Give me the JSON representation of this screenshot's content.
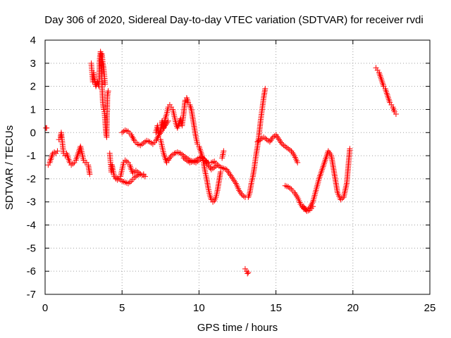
{
  "chart_data": {
    "type": "scatter",
    "title": "Day 306 of 2020, Sidereal Day-to-day VTEC variation (SDTVAR) for receiver rvdi",
    "xlabel": "GPS time / hours",
    "ylabel": "SDTVAR / TECUs",
    "xlim": [
      0,
      25
    ],
    "ylim": [
      -7,
      4
    ],
    "xticks": [
      0,
      5,
      10,
      15,
      20,
      25
    ],
    "yticks": [
      -7,
      -6,
      -5,
      -4,
      -3,
      -2,
      -1,
      0,
      1,
      2,
      3,
      4
    ],
    "grid": true,
    "marker_color": "#ff0000",
    "marker": "plus",
    "series": [
      {
        "name": "s1",
        "x": [
          0.05,
          0.1
        ],
        "y": [
          0.2,
          0.2
        ]
      },
      {
        "name": "s2",
        "x": [
          0.2,
          0.3,
          0.4,
          0.5,
          0.6,
          0.7,
          0.8
        ],
        "y": [
          -1.4,
          -1.3,
          -1.1,
          -0.9,
          -0.85,
          -0.9,
          -0.8
        ]
      },
      {
        "name": "s3",
        "x": [
          0.9,
          1.0,
          1.05,
          1.1,
          1.15,
          1.2,
          1.3,
          1.4,
          1.5,
          1.6,
          1.7,
          1.8,
          1.9,
          2.0,
          2.1,
          2.2,
          2.3,
          2.4,
          2.5,
          2.6,
          2.7,
          2.8,
          2.9
        ],
        "y": [
          -0.3,
          -0.2,
          0.0,
          -0.3,
          -0.6,
          -0.9,
          -1.0,
          -0.9,
          -1.1,
          -1.3,
          -1.4,
          -1.35,
          -1.3,
          -1.2,
          -1.0,
          -0.8,
          -0.6,
          -0.9,
          -1.2,
          -1.3,
          -1.3,
          -1.4,
          -1.8
        ]
      },
      {
        "name": "s4",
        "x": [
          3.0,
          3.05,
          3.1,
          3.15,
          3.2,
          3.3,
          3.4,
          3.5,
          3.55,
          3.6,
          3.65,
          3.7,
          3.75,
          3.8,
          3.85,
          3.9,
          3.95,
          4.0,
          4.05,
          4.1
        ],
        "y": [
          3.0,
          2.6,
          2.2,
          2.6,
          2.3,
          2.0,
          2.2,
          2.0,
          3.2,
          3.5,
          3.3,
          2.0,
          1.3,
          1.0,
          0.9,
          0.5,
          0.0,
          -0.2,
          1.6,
          1.8
        ]
      },
      {
        "name": "s5",
        "x": [
          3.7,
          3.75,
          3.8,
          3.85,
          3.9
        ],
        "y": [
          3.4,
          3.0,
          2.8,
          2.5,
          2.1
        ]
      },
      {
        "name": "s6",
        "x": [
          4.2,
          4.25,
          4.3,
          4.35,
          4.4,
          4.5,
          4.6,
          4.7,
          4.8,
          4.9,
          5.0,
          5.1,
          5.2,
          5.3,
          5.4,
          5.5,
          5.6,
          5.7,
          5.8,
          5.9,
          6.0,
          6.1,
          6.2,
          6.3,
          6.4,
          6.5
        ],
        "y": [
          -0.9,
          -1.3,
          -1.7,
          -1.4,
          -1.6,
          -1.9,
          -2.0,
          -2.05,
          -2.0,
          -1.9,
          -1.6,
          -1.3,
          -1.2,
          -1.25,
          -1.3,
          -1.4,
          -1.6,
          -1.75,
          -1.7,
          -1.65,
          -1.7,
          -1.75,
          -1.8,
          -1.85,
          -1.85,
          -1.9
        ]
      },
      {
        "name": "s7",
        "x": [
          4.6,
          4.8,
          5.0,
          5.2,
          5.4,
          5.6,
          5.8,
          6.0,
          6.2,
          6.4
        ],
        "y": [
          -1.95,
          -2.0,
          -2.1,
          -2.15,
          -2.2,
          -2.1,
          -1.95,
          -1.85,
          -1.8,
          -1.8
        ]
      },
      {
        "name": "s8",
        "x": [
          5.0,
          5.2,
          5.4,
          5.6,
          5.8,
          6.0,
          6.2,
          6.4,
          6.6,
          6.8,
          7.0,
          7.2,
          7.4,
          7.6,
          7.8,
          8.0
        ],
        "y": [
          0.0,
          0.1,
          0.05,
          -0.1,
          -0.35,
          -0.5,
          -0.55,
          -0.45,
          -0.35,
          -0.4,
          -0.5,
          -0.35,
          -0.1,
          0.1,
          0.3,
          0.5
        ]
      },
      {
        "name": "s9",
        "x": [
          7.2,
          7.3,
          7.4,
          7.5,
          7.6,
          7.7,
          7.8,
          7.9,
          8.0,
          8.1,
          8.2,
          8.3,
          8.4,
          8.5,
          8.6,
          8.7,
          8.8,
          8.9,
          9.0,
          9.1,
          9.2,
          9.3
        ],
        "y": [
          0.0,
          0.3,
          -0.1,
          0.1,
          0.5,
          0.2,
          0.6,
          0.8,
          1.1,
          1.2,
          1.1,
          1.0,
          0.7,
          0.4,
          0.2,
          0.4,
          0.6,
          0.3,
          0.8,
          1.4,
          1.5,
          1.3
        ]
      },
      {
        "name": "s10",
        "x": [
          7.5,
          7.6,
          7.7,
          7.8,
          7.9,
          8.0,
          8.2,
          8.4,
          8.6,
          8.8,
          9.0,
          9.2,
          9.4,
          9.6,
          9.8,
          10.0,
          10.2,
          10.4,
          10.6,
          10.8,
          11.0,
          11.2,
          11.4,
          11.6,
          11.8,
          12.0,
          12.2,
          12.4,
          12.6,
          12.8,
          13.0
        ],
        "y": [
          -0.3,
          -0.6,
          -0.9,
          -1.1,
          -1.3,
          -1.2,
          -1.0,
          -0.9,
          -0.85,
          -0.9,
          -1.0,
          -1.1,
          -1.2,
          -1.25,
          -1.3,
          -1.2,
          -1.1,
          -1.2,
          -1.3,
          -1.3,
          -1.25,
          -1.4,
          -1.5,
          -1.55,
          -1.6,
          -1.8,
          -2.0,
          -2.2,
          -2.5,
          -2.7,
          -2.8
        ]
      },
      {
        "name": "s11",
        "x": [
          9.0,
          9.2,
          9.4,
          9.6,
          9.8,
          10.0,
          10.2,
          10.4,
          10.6,
          10.8,
          11.0,
          11.2
        ],
        "y": [
          -1.1,
          -1.2,
          -1.3,
          -1.25,
          -1.2,
          -1.1,
          -1.05,
          -1.2,
          -1.4,
          -1.6,
          -1.5,
          -1.4
        ]
      },
      {
        "name": "s12",
        "x": [
          9.4,
          9.5,
          9.6,
          9.7,
          9.8,
          9.9,
          10.0,
          10.1,
          10.2,
          10.3,
          10.4,
          10.5,
          10.6,
          10.7,
          10.8,
          10.9,
          11.0,
          11.1,
          11.2,
          11.3,
          11.4
        ],
        "y": [
          1.2,
          1.0,
          0.6,
          0.2,
          -0.2,
          -0.5,
          -0.6,
          -0.8,
          -1.0,
          -1.3,
          -1.7,
          -2.0,
          -2.4,
          -2.7,
          -2.9,
          -3.0,
          -2.95,
          -2.8,
          -2.5,
          -2.1,
          -1.7
        ]
      },
      {
        "name": "s13",
        "x": [
          11.5,
          11.6
        ],
        "y": [
          -1.1,
          -0.8
        ]
      },
      {
        "name": "s14",
        "x": [
          13.0,
          13.1,
          13.15,
          13.2
        ],
        "y": [
          -5.9,
          -6.0,
          -6.1,
          -6.05
        ]
      },
      {
        "name": "s15",
        "x": [
          13.2,
          13.3,
          13.4,
          13.5,
          13.6,
          13.7,
          13.8,
          13.9,
          14.0,
          14.1,
          14.2,
          14.3
        ],
        "y": [
          -2.8,
          -2.6,
          -2.2,
          -1.9,
          -1.5,
          -1.0,
          -0.6,
          -0.1,
          0.5,
          1.0,
          1.5,
          1.9
        ]
      },
      {
        "name": "s16",
        "x": [
          13.8,
          14.0,
          14.2,
          14.4,
          14.6,
          14.8,
          15.0,
          15.2,
          15.4,
          15.6,
          15.8,
          16.0,
          16.2,
          16.4
        ],
        "y": [
          -0.4,
          -0.3,
          -0.2,
          -0.3,
          -0.4,
          -0.2,
          -0.1,
          -0.3,
          -0.5,
          -0.6,
          -0.7,
          -0.8,
          -1.0,
          -1.3
        ]
      },
      {
        "name": "s17",
        "x": [
          15.6,
          15.8,
          16.0,
          16.2,
          16.4,
          16.6,
          16.8,
          17.0,
          17.2,
          17.4,
          17.6,
          17.8,
          18.0,
          18.2,
          18.4,
          18.6,
          18.8,
          19.0,
          19.2,
          19.4,
          19.6,
          19.8
        ],
        "y": [
          -2.3,
          -2.35,
          -2.45,
          -2.6,
          -2.8,
          -3.1,
          -3.3,
          -3.35,
          -3.25,
          -3.0,
          -2.5,
          -2.0,
          -1.6,
          -1.2,
          -0.8,
          -1.0,
          -1.8,
          -2.6,
          -2.9,
          -2.8,
          -2.2,
          -0.7
        ]
      },
      {
        "name": "s18",
        "x": [
          16.8,
          17.0,
          17.2,
          17.4
        ],
        "y": [
          -3.2,
          -3.4,
          -3.35,
          -3.2
        ]
      },
      {
        "name": "s19",
        "x": [
          21.5,
          21.6,
          21.7,
          21.8,
          21.9,
          22.0,
          22.1,
          22.2,
          22.3,
          22.4,
          22.5,
          22.6,
          22.7,
          22.8
        ],
        "y": [
          2.8,
          2.7,
          2.6,
          2.4,
          2.2,
          2.0,
          1.9,
          1.7,
          1.5,
          1.3,
          1.2,
          1.1,
          0.9,
          0.8
        ]
      }
    ]
  }
}
